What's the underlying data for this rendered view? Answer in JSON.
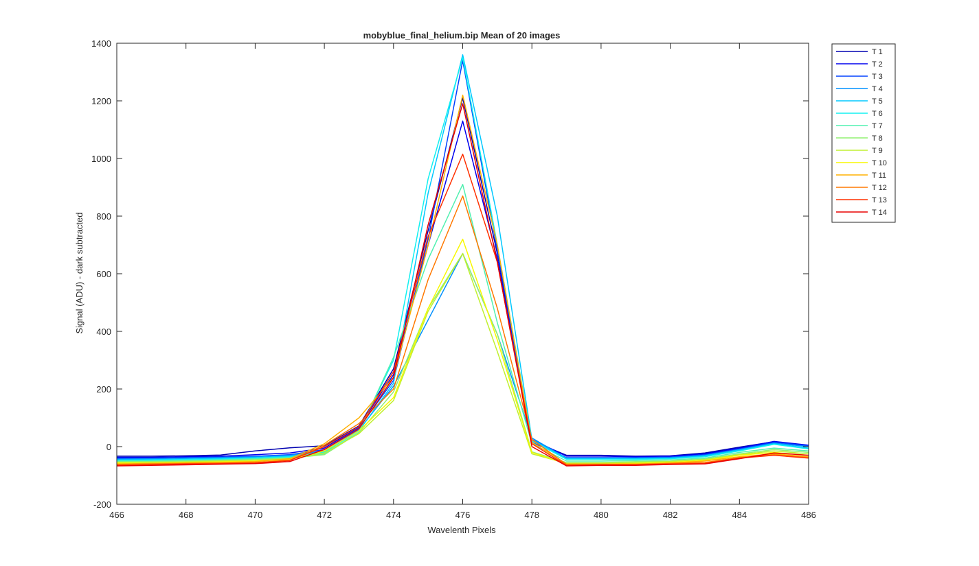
{
  "chart_data": {
    "type": "line",
    "title": "mobyblue_final_helium.bip  Mean of 20 images",
    "xlabel": "Wavelenth Pixels",
    "ylabel": "Signal (ADU) - dark subtracted",
    "xlim": [
      466,
      486
    ],
    "ylim": [
      -200,
      1400
    ],
    "xticks": [
      466,
      468,
      470,
      472,
      474,
      476,
      478,
      480,
      482,
      484,
      486
    ],
    "yticks": [
      -200,
      0,
      200,
      400,
      600,
      800,
      1000,
      1200,
      1400
    ],
    "grid": false,
    "legend_position": "outside top-right",
    "x": [
      466,
      467,
      468,
      469,
      470,
      471,
      472,
      473,
      474,
      475,
      476,
      477,
      478,
      479,
      480,
      481,
      482,
      483,
      484,
      485,
      486
    ],
    "series": [
      {
        "name": "T 1",
        "color": "#0000b0",
        "values": [
          -33,
          -33,
          -32,
          -29,
          -15,
          -4,
          3,
          72,
          270,
          750,
          1210,
          670,
          20,
          -30,
          -30,
          -33,
          -32,
          -22,
          -2,
          17,
          3
        ]
      },
      {
        "name": "T 2",
        "color": "#0000ee",
        "values": [
          -37,
          -37,
          -35,
          -33,
          -28,
          -22,
          -5,
          68,
          250,
          700,
          1130,
          650,
          25,
          -33,
          -33,
          -35,
          -33,
          -25,
          -5,
          18,
          5
        ]
      },
      {
        "name": "T 3",
        "color": "#0040ff",
        "values": [
          -40,
          -40,
          -38,
          -36,
          -33,
          -28,
          -10,
          65,
          230,
          720,
          1340,
          680,
          15,
          -38,
          -38,
          -38,
          -36,
          -28,
          -8,
          15,
          3
        ]
      },
      {
        "name": "T 4",
        "color": "#0090ff",
        "values": [
          -43,
          -42,
          -40,
          -38,
          -35,
          -30,
          -15,
          58,
          210,
          440,
          670,
          390,
          30,
          -40,
          -40,
          -40,
          -38,
          -30,
          -10,
          12,
          0
        ]
      },
      {
        "name": "T 5",
        "color": "#00c8ff",
        "values": [
          -46,
          -45,
          -43,
          -41,
          -38,
          -33,
          -18,
          55,
          220,
          880,
          1360,
          800,
          25,
          -42,
          -42,
          -42,
          -40,
          -32,
          -12,
          10,
          -5
        ]
      },
      {
        "name": "T 6",
        "color": "#10f0f0",
        "values": [
          -48,
          -47,
          -45,
          -43,
          -40,
          -35,
          -20,
          55,
          300,
          930,
          1350,
          700,
          20,
          -44,
          -44,
          -44,
          -42,
          -35,
          -15,
          8,
          -8
        ]
      },
      {
        "name": "T 7",
        "color": "#50f0b0",
        "values": [
          -50,
          -50,
          -48,
          -46,
          -42,
          -38,
          -25,
          50,
          310,
          650,
          910,
          430,
          10,
          -50,
          -50,
          -48,
          -46,
          -40,
          -20,
          -5,
          -15
        ]
      },
      {
        "name": "T 8",
        "color": "#90f070",
        "values": [
          -53,
          -52,
          -50,
          -48,
          -45,
          -40,
          -28,
          48,
          190,
          480,
          670,
          390,
          -18,
          -55,
          -55,
          -52,
          -50,
          -43,
          -25,
          -10,
          -20
        ]
      },
      {
        "name": "T 9",
        "color": "#c0f030",
        "values": [
          -55,
          -55,
          -53,
          -50,
          -48,
          -42,
          -22,
          45,
          160,
          470,
          670,
          330,
          -25,
          -58,
          -57,
          -55,
          -52,
          -45,
          -28,
          -15,
          -25
        ]
      },
      {
        "name": "T 10",
        "color": "#f8f800",
        "values": [
          -57,
          -57,
          -55,
          -53,
          -50,
          -45,
          -15,
          55,
          170,
          480,
          720,
          370,
          -20,
          -60,
          -60,
          -58,
          -55,
          -48,
          -30,
          -20,
          -30
        ]
      },
      {
        "name": "T 11",
        "color": "#ffb000",
        "values": [
          -60,
          -58,
          -57,
          -55,
          -52,
          -42,
          10,
          100,
          240,
          700,
          1220,
          700,
          15,
          -60,
          -60,
          -60,
          -57,
          -50,
          -35,
          -25,
          -35
        ]
      },
      {
        "name": "T 12",
        "color": "#ff7800",
        "values": [
          -62,
          -60,
          -58,
          -57,
          -55,
          -47,
          5,
          80,
          200,
          580,
          870,
          480,
          25,
          -62,
          -62,
          -62,
          -58,
          -55,
          -38,
          -28,
          -38
        ]
      },
      {
        "name": "T 13",
        "color": "#ff3000",
        "values": [
          -65,
          -63,
          -60,
          -59,
          -57,
          -48,
          0,
          70,
          260,
          730,
          1015,
          640,
          10,
          -65,
          -63,
          -63,
          -60,
          -58,
          -40,
          -30,
          -40
        ]
      },
      {
        "name": "T 14",
        "color": "#e80000",
        "values": [
          -67,
          -65,
          -63,
          -61,
          -59,
          -52,
          -10,
          62,
          240,
          770,
          1190,
          640,
          0,
          -67,
          -65,
          -65,
          -62,
          -60,
          -42,
          -22,
          -30
        ]
      }
    ]
  }
}
